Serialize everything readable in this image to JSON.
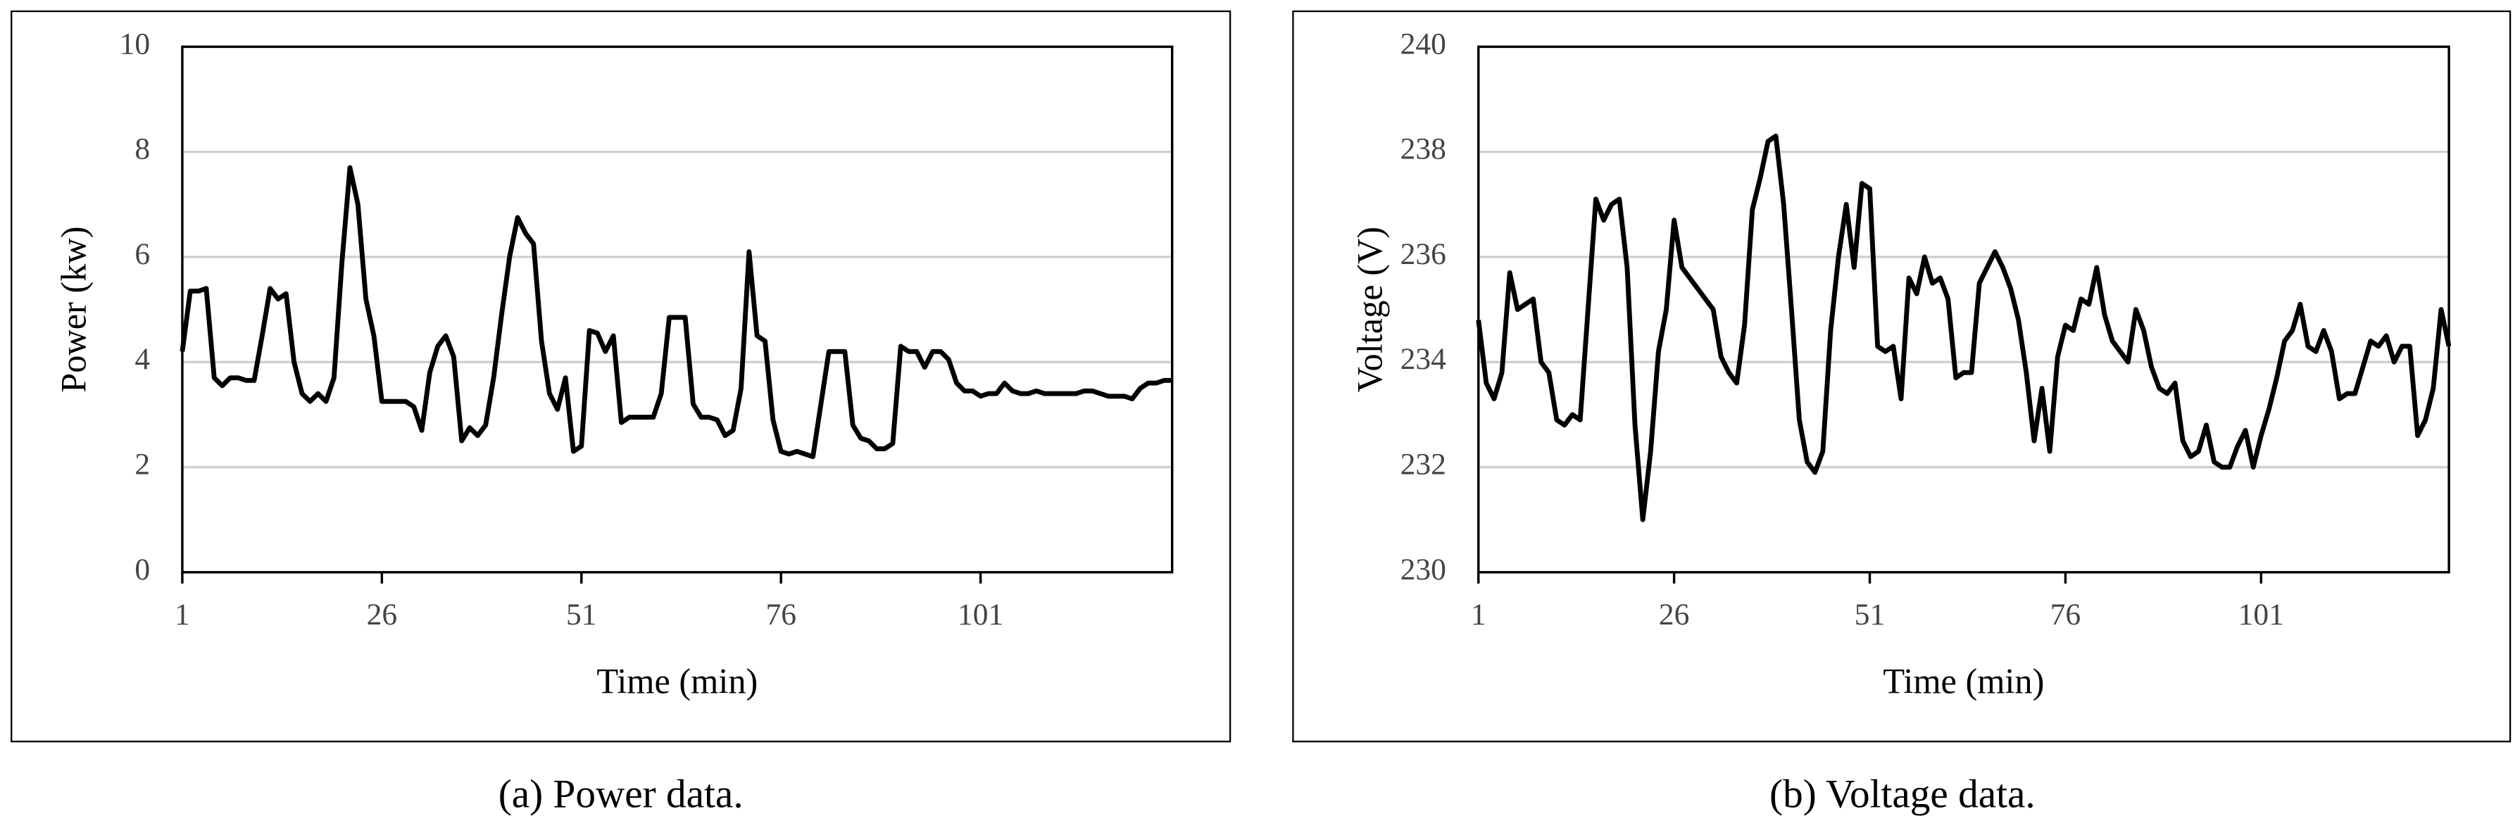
{
  "chart_data": [
    {
      "type": "line",
      "caption": "(a) Power data.",
      "xlabel": "Time (min)",
      "ylabel": "Power (kw)",
      "color": "#000000",
      "grid": true,
      "xlim": [
        1,
        125
      ],
      "xticks": [
        1,
        26,
        51,
        76,
        101
      ],
      "ylim": [
        0,
        10
      ],
      "yticks": [
        0,
        2,
        4,
        6,
        8,
        10
      ],
      "x": [
        1,
        2,
        3,
        4,
        5,
        6,
        7,
        8,
        9,
        10,
        11,
        12,
        13,
        14,
        15,
        16,
        17,
        18,
        19,
        20,
        21,
        22,
        23,
        24,
        25,
        26,
        27,
        28,
        29,
        30,
        31,
        32,
        33,
        34,
        35,
        36,
        37,
        38,
        39,
        40,
        41,
        42,
        43,
        44,
        45,
        46,
        47,
        48,
        49,
        50,
        51,
        52,
        53,
        54,
        55,
        56,
        57,
        58,
        59,
        60,
        61,
        62,
        63,
        64,
        65,
        66,
        67,
        68,
        69,
        70,
        71,
        72,
        73,
        74,
        75,
        76,
        77,
        78,
        79,
        80,
        81,
        82,
        83,
        84,
        85,
        86,
        87,
        88,
        89,
        90,
        91,
        92,
        93,
        94,
        95,
        96,
        97,
        98,
        99,
        100,
        101,
        102,
        103,
        104,
        105,
        106,
        107,
        108,
        109,
        110,
        111,
        112,
        113,
        114,
        115,
        116,
        117,
        118,
        119,
        120,
        121,
        122,
        123,
        124,
        125
      ],
      "values": [
        4.2,
        5.35,
        5.35,
        5.4,
        3.7,
        3.55,
        3.7,
        3.7,
        3.65,
        3.65,
        4.5,
        5.4,
        5.2,
        5.3,
        4.0,
        3.4,
        3.25,
        3.4,
        3.25,
        3.7,
        5.9,
        7.7,
        7.0,
        5.2,
        4.5,
        3.25,
        3.25,
        3.25,
        3.25,
        3.15,
        2.7,
        3.8,
        4.3,
        4.5,
        4.1,
        2.5,
        2.75,
        2.6,
        2.8,
        3.7,
        4.9,
        6.0,
        6.75,
        6.45,
        6.25,
        4.4,
        3.4,
        3.1,
        3.7,
        2.3,
        2.4,
        4.6,
        4.55,
        4.2,
        4.5,
        2.85,
        2.95,
        2.95,
        2.95,
        2.95,
        3.4,
        4.85,
        4.85,
        4.85,
        3.2,
        2.95,
        2.95,
        2.9,
        2.6,
        2.7,
        3.5,
        6.1,
        4.5,
        4.4,
        2.9,
        2.3,
        2.25,
        2.3,
        2.25,
        2.2,
        3.2,
        4.2,
        4.2,
        4.2,
        2.8,
        2.55,
        2.5,
        2.35,
        2.35,
        2.45,
        4.3,
        4.2,
        4.2,
        3.9,
        4.2,
        4.2,
        4.05,
        3.6,
        3.45,
        3.45,
        3.35,
        3.4,
        3.4,
        3.6,
        3.45,
        3.4,
        3.4,
        3.45,
        3.4,
        3.4,
        3.4,
        3.4,
        3.4,
        3.45,
        3.45,
        3.4,
        3.35,
        3.35,
        3.35,
        3.3,
        3.5,
        3.6,
        3.6,
        3.65,
        3.65
      ]
    },
    {
      "type": "line",
      "caption": "(b) Voltage data.",
      "xlabel": "Time (min)",
      "ylabel": "Voltage (V)",
      "color": "#000000",
      "grid": true,
      "xlim": [
        1,
        125
      ],
      "xticks": [
        1,
        26,
        51,
        76,
        101
      ],
      "ylim": [
        230,
        240
      ],
      "yticks": [
        230,
        232,
        234,
        236,
        238,
        240
      ],
      "x": [
        1,
        2,
        3,
        4,
        5,
        6,
        7,
        8,
        9,
        10,
        11,
        12,
        13,
        14,
        15,
        16,
        17,
        18,
        19,
        20,
        21,
        22,
        23,
        24,
        25,
        26,
        27,
        28,
        29,
        30,
        31,
        32,
        33,
        34,
        35,
        36,
        37,
        38,
        39,
        40,
        41,
        42,
        43,
        44,
        45,
        46,
        47,
        48,
        49,
        50,
        51,
        52,
        53,
        54,
        55,
        56,
        57,
        58,
        59,
        60,
        61,
        62,
        63,
        64,
        65,
        66,
        67,
        68,
        69,
        70,
        71,
        72,
        73,
        74,
        75,
        76,
        77,
        78,
        79,
        80,
        81,
        82,
        83,
        84,
        85,
        86,
        87,
        88,
        89,
        90,
        91,
        92,
        93,
        94,
        95,
        96,
        97,
        98,
        99,
        100,
        101,
        102,
        103,
        104,
        105,
        106,
        107,
        108,
        109,
        110,
        111,
        112,
        113,
        114,
        115,
        116,
        117,
        118,
        119,
        120,
        121,
        122,
        123,
        124,
        125
      ],
      "values": [
        234.8,
        233.6,
        233.3,
        233.8,
        235.7,
        235.0,
        235.1,
        235.2,
        234.0,
        233.8,
        232.9,
        232.8,
        233.0,
        232.9,
        235.0,
        237.1,
        236.7,
        237.0,
        237.1,
        235.8,
        232.8,
        231.0,
        232.3,
        234.2,
        235.0,
        236.7,
        235.8,
        235.6,
        235.4,
        235.2,
        235.0,
        234.1,
        233.8,
        233.6,
        234.7,
        236.9,
        237.5,
        238.2,
        238.3,
        237.0,
        235.0,
        232.9,
        232.1,
        231.9,
        232.3,
        234.6,
        236.0,
        237.0,
        235.8,
        237.4,
        237.3,
        234.3,
        234.2,
        234.3,
        233.3,
        235.6,
        235.3,
        236.0,
        235.5,
        235.6,
        235.2,
        233.7,
        233.8,
        233.8,
        235.5,
        235.8,
        236.1,
        235.8,
        235.4,
        234.8,
        233.8,
        232.5,
        233.5,
        232.3,
        234.1,
        234.7,
        234.6,
        235.2,
        235.1,
        235.8,
        234.9,
        234.4,
        234.2,
        234.0,
        235.0,
        234.6,
        233.9,
        233.5,
        233.4,
        233.6,
        232.5,
        232.2,
        232.3,
        232.8,
        232.1,
        232.0,
        232.0,
        232.4,
        232.7,
        232.0,
        232.6,
        233.1,
        233.7,
        234.4,
        234.6,
        235.1,
        234.3,
        234.2,
        234.6,
        234.2,
        233.3,
        233.4,
        233.4,
        233.9,
        234.4,
        234.3,
        234.5,
        234.0,
        234.3,
        234.3,
        232.6,
        232.9,
        233.5,
        235.0,
        234.3
      ]
    }
  ]
}
